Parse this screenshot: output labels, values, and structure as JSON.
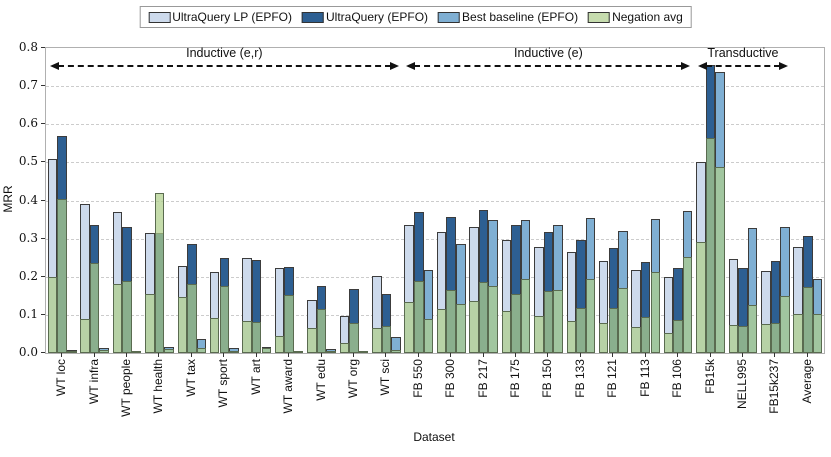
{
  "chart_data": {
    "type": "bar",
    "title": "",
    "xlabel": "Dataset",
    "ylabel": "MRR",
    "ylim": [
      0.0,
      0.8
    ],
    "yticks": [
      "0.0",
      "0.1",
      "0.2",
      "0.3",
      "0.4",
      "0.5",
      "0.6",
      "0.7",
      "0.8"
    ],
    "grid": "horizontal-dashed",
    "legend_position": "top-center",
    "categories": [
      "WT loc",
      "WT infra",
      "WT people",
      "WT health",
      "WT tax",
      "WT sport",
      "WT art",
      "WT award",
      "WT edu",
      "WT org",
      "WT sci",
      "FB 550",
      "FB 300",
      "FB 217",
      "FB 175",
      "FB 150",
      "FB 133",
      "FB 121",
      "FB 113",
      "FB 106",
      "FB15k",
      "NELL995",
      "FB15k237",
      "Average"
    ],
    "series": [
      {
        "name": "UltraQuery LP (EPFO)",
        "color": "#cddaec",
        "values": [
          0.51,
          0.39,
          0.37,
          0.315,
          0.227,
          0.212,
          0.248,
          0.223,
          0.138,
          0.097,
          0.203,
          0.336,
          0.318,
          0.331,
          0.296,
          0.278,
          0.265,
          0.242,
          0.217,
          0.2,
          0.5,
          0.246,
          0.215,
          0.278
        ]
      },
      {
        "name": "UltraQuery (EPFO)",
        "color": "#2d5f92",
        "values": [
          0.568,
          0.335,
          0.33,
          0.315,
          0.287,
          0.249,
          0.245,
          0.226,
          0.175,
          0.167,
          0.155,
          0.37,
          0.357,
          0.374,
          0.336,
          0.318,
          0.297,
          0.276,
          0.239,
          0.224,
          0.756,
          0.224,
          0.24,
          0.307
        ]
      },
      {
        "name": "Best baseline (EPFO)",
        "color": "#7fafd3",
        "values": [
          0.008,
          0.012,
          0.006,
          0.015,
          0.036,
          0.012,
          0.017,
          0.006,
          0.01,
          0.006,
          0.042,
          0.217,
          0.287,
          0.348,
          0.348,
          0.336,
          0.353,
          0.32,
          0.351,
          0.373,
          0.737,
          0.329,
          0.331,
          0.193
        ]
      }
    ],
    "negation": {
      "name": "Negation avg",
      "color": "rgba(174,206,138,0.72)",
      "legend_color": "#c6dcae",
      "note": "semi-transparent green bars overlaid in front of each method's EPFO bar",
      "values_per_series": [
        [
          0.2,
          0.09,
          0.18,
          0.155,
          0.147,
          0.093,
          0.085,
          0.045,
          0.066,
          0.027,
          0.066,
          0.135,
          0.115,
          0.136,
          0.11,
          0.096,
          0.085,
          0.079,
          0.067,
          0.053,
          0.29,
          0.074,
          0.075,
          0.103
        ],
        [
          0.403,
          0.235,
          0.19,
          0.419,
          0.181,
          0.177,
          0.082,
          0.151,
          0.116,
          0.08,
          0.071,
          0.19,
          0.165,
          0.186,
          0.156,
          0.163,
          0.118,
          0.119,
          0.095,
          0.086,
          0.565,
          0.071,
          0.078,
          0.174
        ],
        [
          0.005,
          0.008,
          0.004,
          0.01,
          0.012,
          0.006,
          0.012,
          0.004,
          0.005,
          0.003,
          0.008,
          0.09,
          0.128,
          0.176,
          0.195,
          0.165,
          0.195,
          0.171,
          0.212,
          0.252,
          0.488,
          0.125,
          0.15,
          0.102
        ]
      ]
    },
    "regions": [
      {
        "label": "Inductive (e,r)",
        "from": 0,
        "to": 10
      },
      {
        "label": "Inductive (e)",
        "from": 11,
        "to": 19
      },
      {
        "label": "Transductive",
        "from": 20,
        "to": 22
      }
    ]
  }
}
